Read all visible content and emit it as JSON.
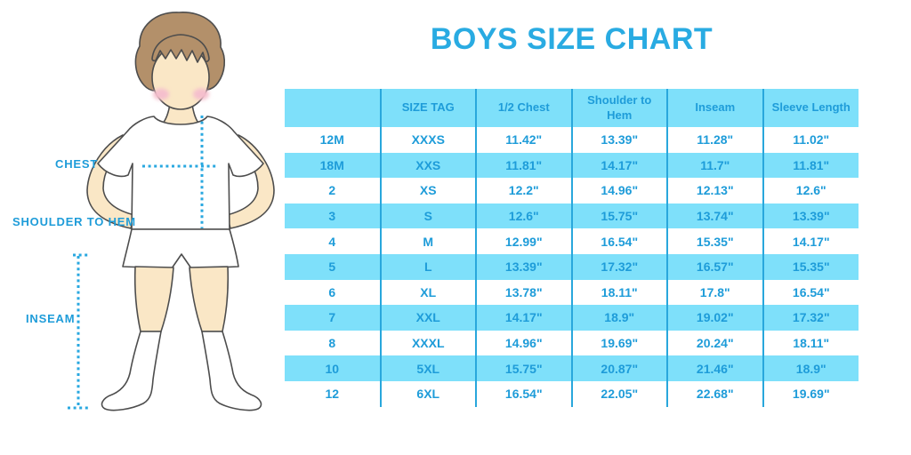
{
  "title": "BOYS SIZE CHART",
  "diagram": {
    "labels": {
      "chest": "CHEST",
      "shoulder_to_hem": "SHOULDER TO HEM",
      "inseam": "INSEAM"
    }
  },
  "chart_data": {
    "type": "table",
    "title": "BOYS SIZE CHART",
    "columns": [
      "",
      "SIZE TAG",
      "1/2 Chest",
      "Shoulder to\nHem",
      "Inseam",
      "Sleeve Length"
    ],
    "rows": [
      [
        "12M",
        "XXXS",
        "11.42\"",
        "13.39\"",
        "11.28\"",
        "11.02\""
      ],
      [
        "18M",
        "XXS",
        "11.81\"",
        "14.17\"",
        "11.7\"",
        "11.81\""
      ],
      [
        "2",
        "XS",
        "12.2\"",
        "14.96\"",
        "12.13\"",
        "12.6\""
      ],
      [
        "3",
        "S",
        "12.6\"",
        "15.75\"",
        "13.74\"",
        "13.39\""
      ],
      [
        "4",
        "M",
        "12.99\"",
        "16.54\"",
        "15.35\"",
        "14.17\""
      ],
      [
        "5",
        "L",
        "13.39\"",
        "17.32\"",
        "16.57\"",
        "15.35\""
      ],
      [
        "6",
        "XL",
        "13.78\"",
        "18.11\"",
        "17.8\"",
        "16.54\""
      ],
      [
        "7",
        "XXL",
        "14.17\"",
        "18.9\"",
        "19.02\"",
        "17.32\""
      ],
      [
        "8",
        "XXXL",
        "14.96\"",
        "19.69\"",
        "20.24\"",
        "18.11\""
      ],
      [
        "10",
        "5XL",
        "15.75\"",
        "20.87\"",
        "21.46\"",
        "18.9\""
      ],
      [
        "12",
        "6XL",
        "16.54\"",
        "22.05\"",
        "22.68\"",
        "19.69\""
      ]
    ],
    "layout": {
      "row_striping": "white and cyan alternating, header cyan",
      "grid": "vertical dividers only"
    }
  },
  "colors": {
    "accent_cyan": "#7ee0fa",
    "divider_blue": "#29a7dc",
    "text_blue": "#1e9cd9",
    "title_blue": "#29abe2",
    "dot_blue": "#2aa8e0",
    "skin": "#fae7c6",
    "hair": "#b3906a",
    "blush": "#f5bfcd",
    "outline": "#4d4d4d",
    "bg": "#ffffff"
  }
}
